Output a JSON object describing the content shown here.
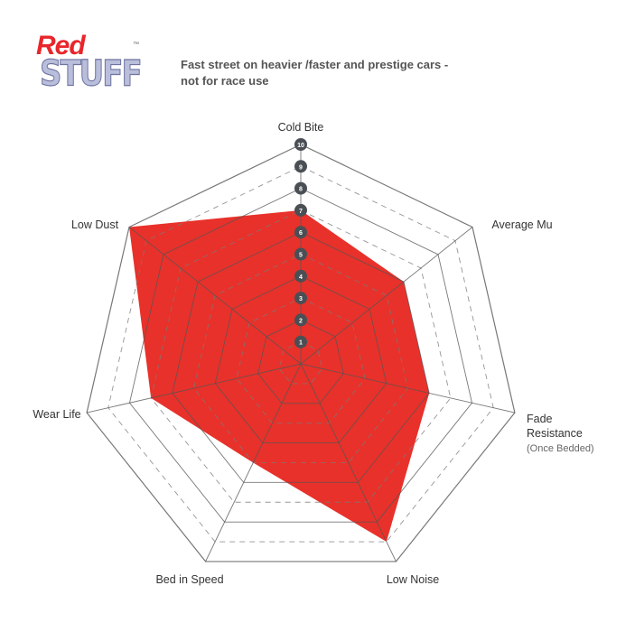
{
  "logo": {
    "line1": "Red",
    "line2": "STUFF",
    "tm": "™"
  },
  "subtitle": {
    "line1": "Fast street on heavier /faster and prestige cars -",
    "line2": "not for race use"
  },
  "chart_data": {
    "type": "radar",
    "title": "",
    "axes": [
      "Cold Bite",
      "Average Mu",
      "Fade Resistance",
      "Low Noise",
      "Bed in Speed",
      "Wear Life",
      "Low Dust"
    ],
    "axis_sublabels": {
      "Fade Resistance": "(Once Bedded)"
    },
    "values": [
      7,
      6,
      6,
      9,
      5,
      7,
      10
    ],
    "range": [
      0,
      10
    ],
    "ticks": [
      "1",
      "2",
      "3",
      "4",
      "5",
      "6",
      "7",
      "8",
      "9",
      "10"
    ],
    "fill_color": "#e8312a",
    "grid_color": "#888888"
  }
}
